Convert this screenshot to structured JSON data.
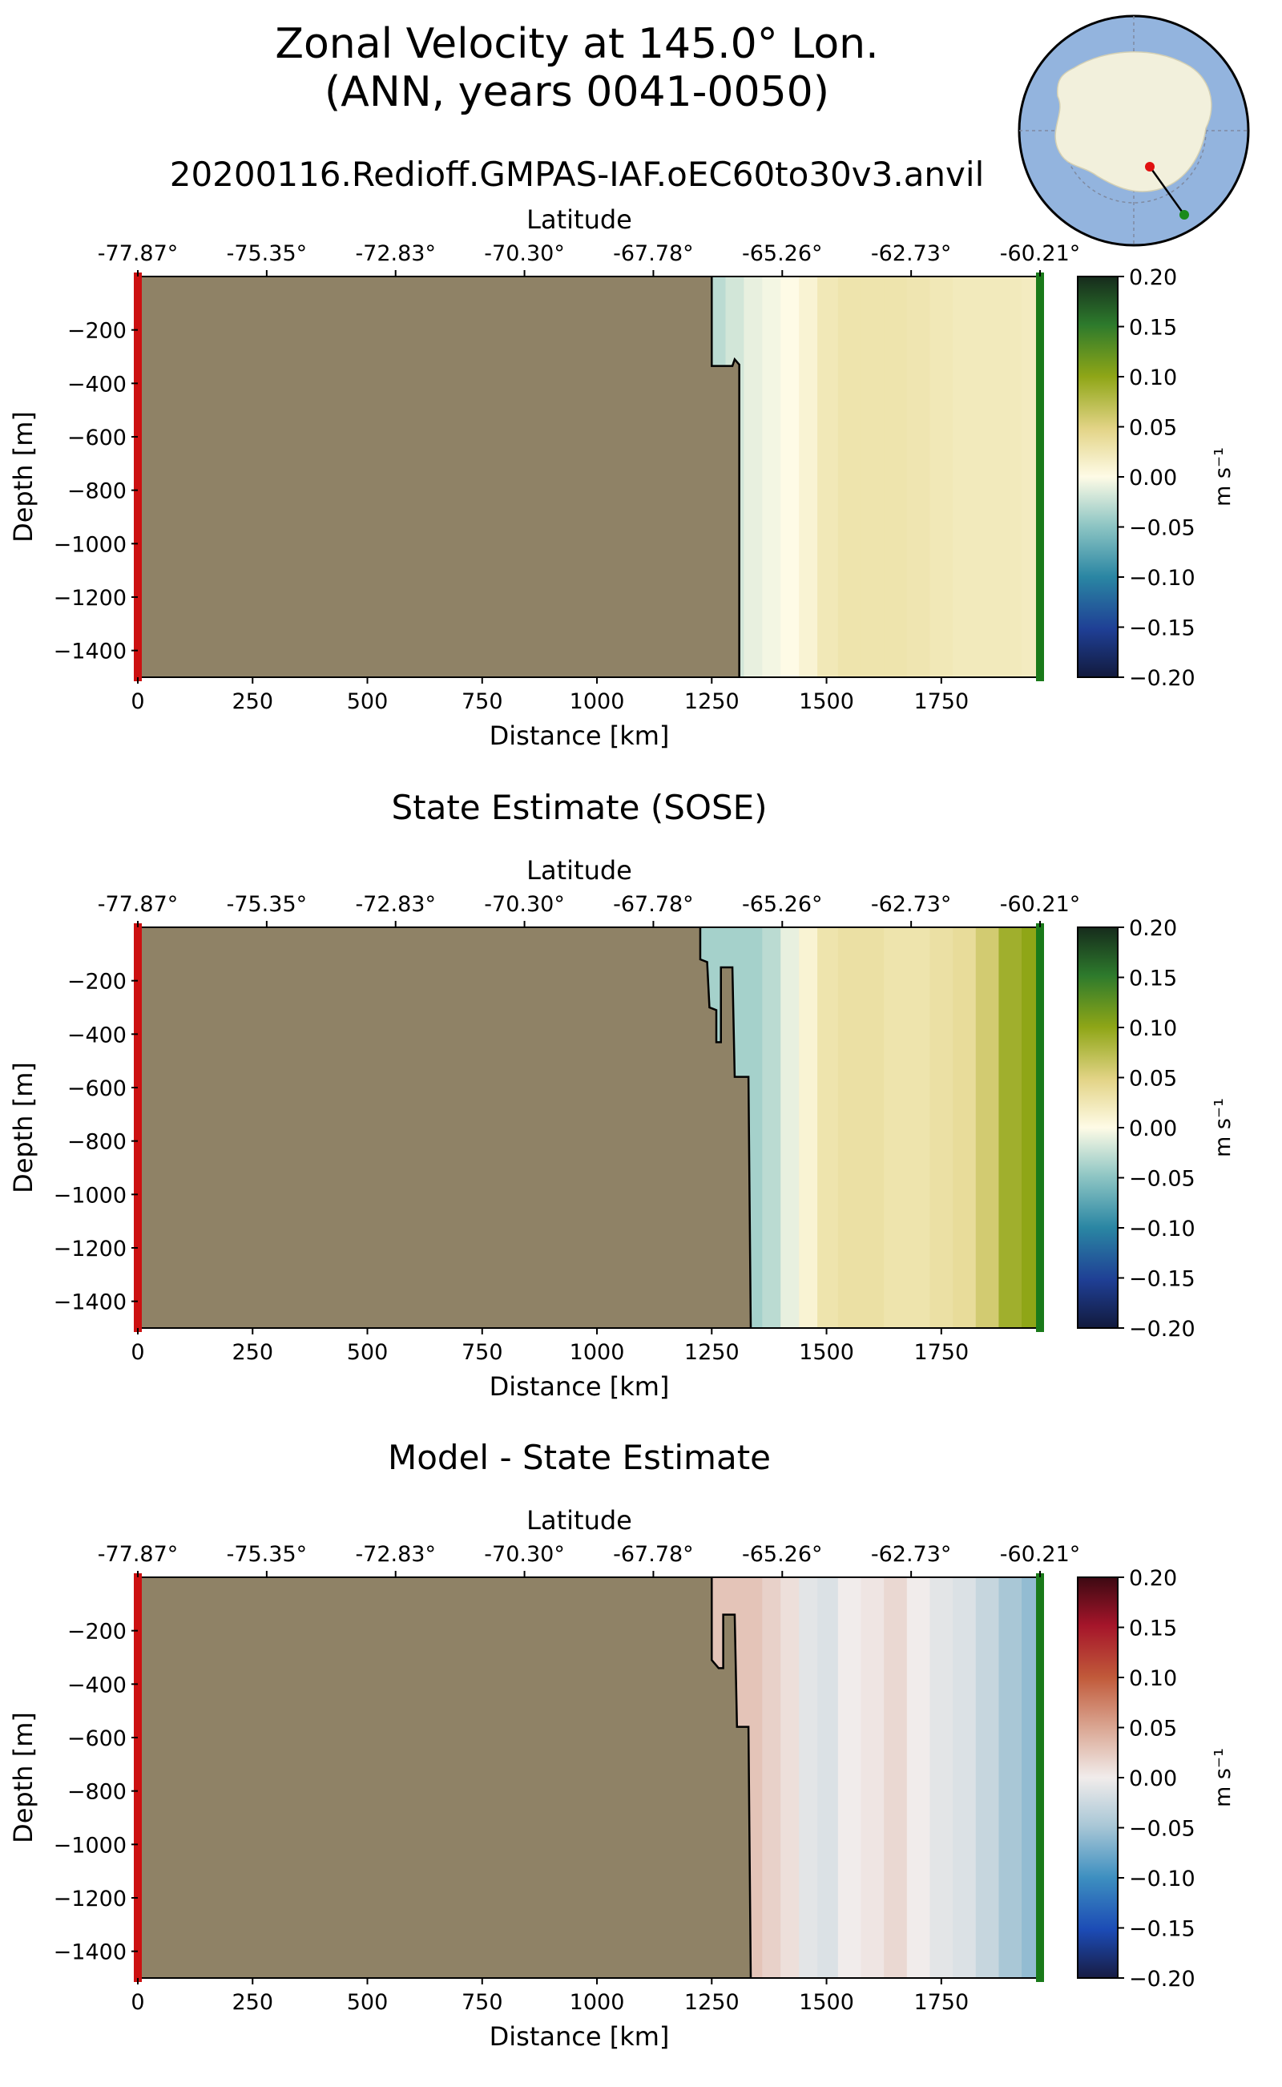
{
  "figure": {
    "title_line1": "Zonal Velocity at 145.0° Lon.",
    "title_line2": "(ANN, years 0041-0050)",
    "run_name": "20200116.Redioff.GMPAS-IAF.oEC60to30v3.anvil"
  },
  "inset_map": {
    "description_colors": {
      "ocean": "#93b4de",
      "land": "#f2f0dc",
      "start_marker": "#e01010",
      "end_marker": "#1a8a1a"
    }
  },
  "colors": {
    "land": "#8f8266",
    "start_bar": "#cc1111",
    "end_bar": "#1a7a1a"
  },
  "chart_data": [
    {
      "type": "heatmap",
      "title": "",
      "xlabel": "Distance [km]",
      "ylabel": "Depth [m]",
      "top_xlabel": "Latitude",
      "xlim": [
        0,
        1965
      ],
      "ylim": [
        -1500,
        0
      ],
      "xticks": [
        0,
        250,
        500,
        750,
        1000,
        1250,
        1500,
        1750
      ],
      "yticks": [
        -200,
        -400,
        -600,
        -800,
        -1000,
        -1200,
        -1400
      ],
      "lat_ticks": [
        "-77.87°",
        "-75.35°",
        "-72.83°",
        "-70.30°",
        "-67.78°",
        "-65.26°",
        "-62.73°",
        "-60.21°"
      ],
      "colorbar": {
        "label": "m s⁻¹",
        "min": -0.2,
        "max": 0.2,
        "ticks": [
          "0.20",
          "0.15",
          "0.10",
          "0.05",
          "0.00",
          "−0.05",
          "−0.10",
          "−0.15",
          "−0.20"
        ],
        "colormap": "delta"
      },
      "land_profile": [
        [
          1250,
          0
        ],
        [
          1250,
          -335
        ],
        [
          1295,
          -335
        ],
        [
          1300,
          -310
        ],
        [
          1310,
          -330
        ],
        [
          1310,
          -1500
        ]
      ],
      "columns_distance_km": [
        1260,
        1300,
        1340,
        1380,
        1420,
        1460,
        1500,
        1550,
        1600,
        1650,
        1700,
        1750,
        1800,
        1850,
        1900,
        1950
      ],
      "velocity_ms": [
        -0.03,
        -0.02,
        -0.01,
        -0.005,
        0.0,
        0.01,
        0.025,
        0.03,
        0.03,
        0.03,
        0.028,
        0.025,
        0.022,
        0.022,
        0.022,
        0.02
      ]
    },
    {
      "type": "heatmap",
      "title": "State Estimate (SOSE)",
      "xlabel": "Distance [km]",
      "ylabel": "Depth [m]",
      "top_xlabel": "Latitude",
      "xlim": [
        0,
        1965
      ],
      "ylim": [
        -1500,
        0
      ],
      "xticks": [
        0,
        250,
        500,
        750,
        1000,
        1250,
        1500,
        1750
      ],
      "yticks": [
        -200,
        -400,
        -600,
        -800,
        -1000,
        -1200,
        -1400
      ],
      "lat_ticks": [
        "-77.87°",
        "-75.35°",
        "-72.83°",
        "-70.30°",
        "-67.78°",
        "-65.26°",
        "-62.73°",
        "-60.21°"
      ],
      "colorbar": {
        "label": "m s⁻¹",
        "min": -0.2,
        "max": 0.2,
        "ticks": [
          "0.20",
          "0.15",
          "0.10",
          "0.05",
          "0.00",
          "−0.05",
          "−0.10",
          "−0.15",
          "−0.20"
        ],
        "colormap": "delta"
      },
      "land_profile": [
        [
          1225,
          0
        ],
        [
          1225,
          -120
        ],
        [
          1240,
          -130
        ],
        [
          1245,
          -300
        ],
        [
          1260,
          -310
        ],
        [
          1260,
          -430
        ],
        [
          1270,
          -430
        ],
        [
          1270,
          -150
        ],
        [
          1295,
          -150
        ],
        [
          1300,
          -560
        ],
        [
          1330,
          -560
        ],
        [
          1335,
          -1500
        ]
      ],
      "columns_distance_km": [
        1340,
        1380,
        1420,
        1460,
        1500,
        1550,
        1600,
        1650,
        1700,
        1750,
        1800,
        1850,
        1900,
        1950
      ],
      "velocity_ms": [
        -0.04,
        -0.03,
        -0.01,
        0.01,
        0.03,
        0.035,
        0.035,
        0.03,
        0.03,
        0.035,
        0.04,
        0.06,
        0.09,
        0.1
      ]
    },
    {
      "type": "heatmap",
      "title": "Model - State Estimate",
      "xlabel": "Distance [km]",
      "ylabel": "Depth [m]",
      "top_xlabel": "Latitude",
      "xlim": [
        0,
        1965
      ],
      "ylim": [
        -1500,
        0
      ],
      "xticks": [
        0,
        250,
        500,
        750,
        1000,
        1250,
        1500,
        1750
      ],
      "yticks": [
        -200,
        -400,
        -600,
        -800,
        -1000,
        -1200,
        -1400
      ],
      "lat_ticks": [
        "-77.87°",
        "-75.35°",
        "-72.83°",
        "-70.30°",
        "-67.78°",
        "-65.26°",
        "-62.73°",
        "-60.21°"
      ],
      "colorbar": {
        "label": "m s⁻¹",
        "min": -0.2,
        "max": 0.2,
        "ticks": [
          "0.20",
          "0.15",
          "0.10",
          "0.05",
          "0.00",
          "−0.05",
          "−0.10",
          "−0.15",
          "−0.20"
        ],
        "colormap": "balance"
      },
      "land_profile": [
        [
          1250,
          0
        ],
        [
          1250,
          -310
        ],
        [
          1265,
          -340
        ],
        [
          1275,
          -340
        ],
        [
          1275,
          -140
        ],
        [
          1300,
          -140
        ],
        [
          1305,
          -560
        ],
        [
          1330,
          -560
        ],
        [
          1335,
          -1500
        ]
      ],
      "columns_distance_km": [
        1340,
        1380,
        1420,
        1460,
        1500,
        1550,
        1600,
        1650,
        1700,
        1750,
        1800,
        1850,
        1900,
        1950
      ],
      "velocity_ms": [
        0.03,
        0.02,
        0.01,
        -0.01,
        -0.015,
        0.0,
        0.005,
        0.015,
        0.0,
        -0.01,
        -0.015,
        -0.03,
        -0.05,
        -0.06
      ]
    }
  ]
}
